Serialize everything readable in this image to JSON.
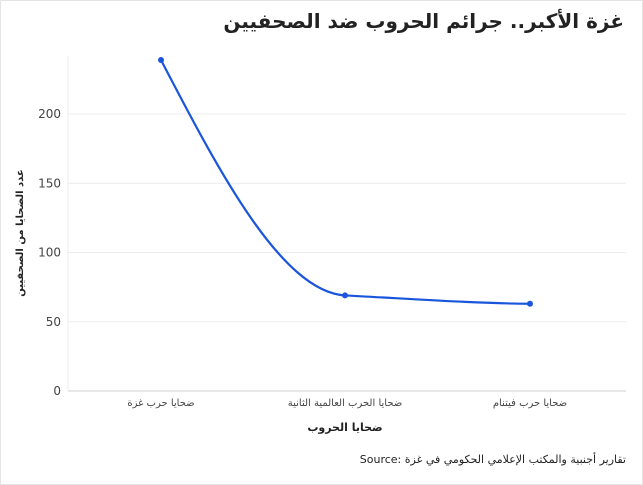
{
  "title": "غزة الأكبر.. جرائم الحروب ضد الصحفيين",
  "source": "Source: تقارير أجنبية والمكتب الإعلامي الحكومي في غزة",
  "chart_data": {
    "type": "line",
    "categories": [
      "ضحايا حرب غزة",
      "ضحايا الحرب العالمية الثانية",
      "ضحايا حرب فيتنام"
    ],
    "values": [
      239,
      69,
      63
    ],
    "xlabel": "ضحايا الحروب",
    "ylabel": "عدد الضحايا من الصحفيين",
    "yticks": [
      0,
      50,
      100,
      150,
      200
    ],
    "ylim": [
      0,
      250
    ],
    "grid": true,
    "line_color": "#1a56db",
    "smooth": true
  }
}
